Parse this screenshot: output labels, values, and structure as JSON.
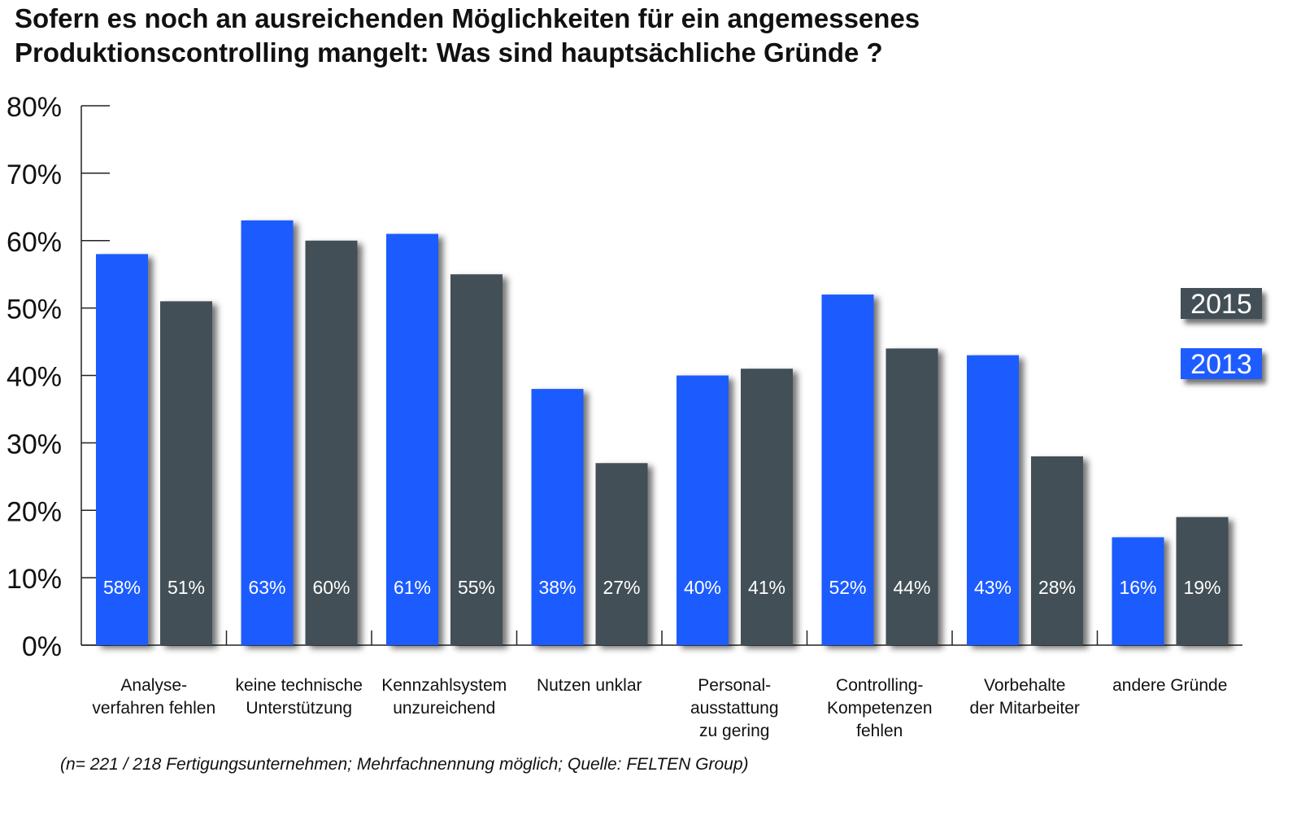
{
  "chart_data": {
    "type": "bar",
    "title": "Sofern es noch an ausreichenden Möglichkeiten für ein angemessenes Produktionscontrolling mangelt: Was sind hauptsächliche Gründe ?",
    "title_lines": [
      "Sofern es noch an ausreichenden Möglichkeiten für ein angemessenes",
      "Produktionscontrolling mangelt: Was sind hauptsächliche Gründe ?"
    ],
    "categories": [
      [
        "Analyse-",
        "verfahren fehlen"
      ],
      [
        "keine technische",
        "Unterstützung"
      ],
      [
        "Kennzahlsystem",
        "unzureichend"
      ],
      [
        "Nutzen unklar"
      ],
      [
        "Personal-",
        "ausstattung",
        "zu gering"
      ],
      [
        "Controlling-",
        "Kompetenzen",
        "fehlen"
      ],
      [
        "Vorbehalte",
        "der Mitarbeiter"
      ],
      [
        "andere Gründe"
      ]
    ],
    "series": [
      {
        "name": "2013",
        "color": "#1f5cff",
        "values": [
          58,
          63,
          61,
          38,
          40,
          52,
          43,
          16
        ]
      },
      {
        "name": "2015",
        "color": "#434f57",
        "values": [
          51,
          60,
          55,
          27,
          41,
          44,
          28,
          19
        ]
      }
    ],
    "ylim": [
      0,
      80
    ],
    "yticks": [
      "0%",
      "10%",
      "20%",
      "30%",
      "40%",
      "50%",
      "60%",
      "70%",
      "80%"
    ],
    "xlabel": "",
    "ylabel": "",
    "legend": "right",
    "grid": false,
    "note": "(n= 221 / 218 Fertigungsunternehmen; Mehrfachnennung möglich; Quelle: FELTEN Group)"
  }
}
